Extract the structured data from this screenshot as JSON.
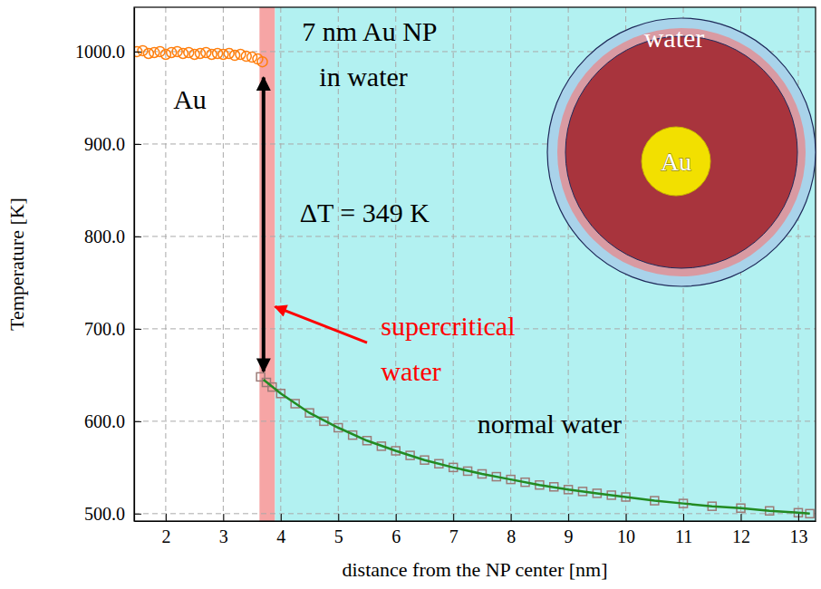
{
  "chart_data": {
    "type": "scatter",
    "x_label": "distance from the NP center [nm]",
    "y_label": "Temperature [K]",
    "xlim": [
      1.45,
      13.3
    ],
    "ylim": [
      492,
      1048
    ],
    "xticks": [
      2,
      3,
      4,
      5,
      6,
      7,
      8,
      9,
      10,
      11,
      12,
      13
    ],
    "yticks": [
      {
        "value": 500,
        "label": "500.0"
      },
      {
        "value": 600,
        "label": "600.0"
      },
      {
        "value": 700,
        "label": "700.0"
      },
      {
        "value": 800,
        "label": "800.0"
      },
      {
        "value": 900,
        "label": "900.0"
      },
      {
        "value": 1000,
        "label": "1000.0"
      }
    ],
    "grid": true,
    "bands": [
      {
        "x": [
          3.63,
          3.9
        ],
        "color": "#f6a5a5"
      },
      {
        "x": [
          3.9,
          13.3
        ],
        "color": "#b2f1f1"
      }
    ],
    "series": [
      {
        "type": "scatter",
        "marker": "circle",
        "color": "#ff7f0e",
        "x": [
          1.5,
          1.6,
          1.7,
          1.8,
          1.9,
          2.0,
          2.1,
          2.2,
          2.3,
          2.4,
          2.5,
          2.6,
          2.7,
          2.8,
          2.9,
          3.0,
          3.1,
          3.2,
          3.3,
          3.4,
          3.5,
          3.6,
          3.68
        ],
        "values": [
          1000,
          1001,
          998,
          999,
          1000,
          997,
          999,
          1000,
          998,
          999,
          997,
          998,
          999,
          997,
          998,
          997,
          998,
          996,
          997,
          995,
          994,
          992,
          989
        ]
      },
      {
        "type": "scatter",
        "marker": "square",
        "color": "#9c7b77",
        "x": [
          3.65,
          3.75,
          3.85,
          4.0,
          4.25,
          4.5,
          4.75,
          5.0,
          5.25,
          5.5,
          5.75,
          6.0,
          6.25,
          6.5,
          6.75,
          7.0,
          7.25,
          7.5,
          7.75,
          8.0,
          8.25,
          8.5,
          8.75,
          9.0,
          9.25,
          9.5,
          9.75,
          10.0,
          10.5,
          11.0,
          11.5,
          12.0,
          12.5,
          13.0,
          13.2
        ],
        "values": [
          648,
          642,
          637,
          630,
          619,
          609,
          600,
          593,
          585,
          579,
          573,
          568,
          563,
          558,
          554,
          550,
          546,
          543,
          540,
          537,
          534,
          531,
          529,
          526,
          524,
          522,
          520,
          518,
          514,
          511,
          508,
          506,
          503,
          501,
          500
        ]
      },
      {
        "type": "line",
        "line_style": "solid",
        "color": "#228b22",
        "x": [
          3.7,
          4.0,
          4.5,
          5.0,
          5.5,
          6.0,
          6.5,
          7.0,
          7.5,
          8.0,
          8.5,
          9.0,
          9.5,
          10.0,
          10.5,
          11.0,
          11.5,
          12.0,
          12.5,
          13.0,
          13.2
        ],
        "values": [
          645,
          630,
          609,
          593,
          579,
          568,
          558,
          550,
          543,
          537,
          531,
          526,
          522,
          518,
          514,
          511,
          508,
          506,
          503,
          501,
          500
        ]
      }
    ],
    "arrows": [
      {
        "marker": "both",
        "color": "#000000",
        "x": [
          3.7,
          3.7
        ],
        "y": [
          972,
          654
        ]
      },
      {
        "marker": "end",
        "color": "#ff0000",
        "x": [
          5.5,
          3.9
        ],
        "y": [
          685,
          724
        ]
      }
    ],
    "annotations": [
      {
        "text": "7 nm Au NP",
        "x": 4.37,
        "y": 1012,
        "color": "#000000"
      },
      {
        "text": "in water",
        "x": 4.67,
        "y": 963,
        "color": "#000000"
      },
      {
        "text": "Au",
        "x": 2.13,
        "y": 938,
        "color": "#000000"
      },
      {
        "text": "ΔT = 349 K",
        "x": 4.33,
        "y": 816,
        "color": "#000000"
      },
      {
        "text": "supercritical",
        "x": 5.74,
        "y": 693,
        "color": "#ff0000"
      },
      {
        "text": "water",
        "x": 5.74,
        "y": 644,
        "color": "#ff0000"
      },
      {
        "text": "normal water",
        "x": 7.42,
        "y": 587,
        "color": "#000000"
      }
    ],
    "inset": {
      "water_label": "water",
      "core_label": "Au"
    }
  }
}
